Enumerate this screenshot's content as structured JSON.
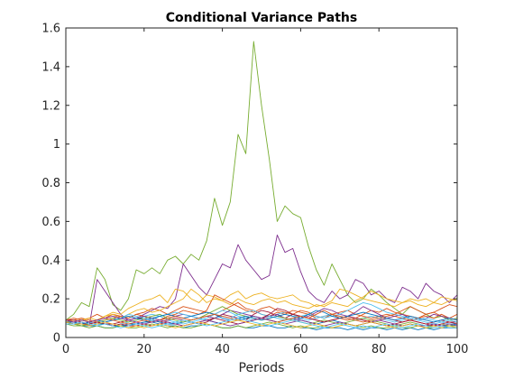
{
  "chart_data": {
    "type": "line",
    "title": "Conditional Variance Paths",
    "xlabel": "Periods",
    "ylabel": "",
    "xlim": [
      0,
      100
    ],
    "ylim": [
      0,
      1.6
    ],
    "xticks": [
      0,
      20,
      40,
      60,
      80,
      100
    ],
    "yticks": [
      0,
      0.2,
      0.4,
      0.6,
      0.8,
      1,
      1.2,
      1.4,
      1.6
    ],
    "xtick_labels": [
      "0",
      "20",
      "40",
      "60",
      "80",
      "100"
    ],
    "ytick_labels": [
      "0",
      "0.2",
      "0.4",
      "0.6",
      "0.8",
      "1",
      "1.2",
      "1.4",
      "1.6"
    ],
    "grid": false,
    "legend": "none",
    "x": [
      0,
      2,
      4,
      6,
      8,
      10,
      12,
      14,
      16,
      18,
      20,
      22,
      24,
      26,
      28,
      30,
      32,
      34,
      36,
      38,
      40,
      42,
      44,
      46,
      48,
      50,
      52,
      54,
      56,
      58,
      60,
      62,
      64,
      66,
      68,
      70,
      72,
      74,
      76,
      78,
      80,
      82,
      84,
      86,
      88,
      90,
      92,
      94,
      96,
      98,
      100
    ],
    "series": [
      {
        "color": "#77ac30",
        "values": [
          0.09,
          0.12,
          0.18,
          0.16,
          0.36,
          0.3,
          0.17,
          0.14,
          0.2,
          0.35,
          0.33,
          0.36,
          0.33,
          0.4,
          0.42,
          0.38,
          0.43,
          0.4,
          0.5,
          0.72,
          0.58,
          0.7,
          1.05,
          0.95,
          1.53,
          1.2,
          0.92,
          0.6,
          0.68,
          0.64,
          0.62,
          0.47,
          0.35,
          0.27,
          0.38,
          0.3,
          0.22,
          0.18,
          0.2,
          0.25,
          0.22,
          0.18,
          0.15,
          0.12,
          0.16,
          0.14,
          0.12,
          0.1,
          0.11,
          0.09,
          0.1
        ]
      },
      {
        "color": "#7e2f8e",
        "values": [
          0.08,
          0.07,
          0.08,
          0.06,
          0.3,
          0.24,
          0.18,
          0.12,
          0.09,
          0.1,
          0.12,
          0.14,
          0.16,
          0.15,
          0.2,
          0.38,
          0.32,
          0.26,
          0.22,
          0.3,
          0.38,
          0.36,
          0.48,
          0.4,
          0.35,
          0.3,
          0.32,
          0.53,
          0.44,
          0.46,
          0.34,
          0.24,
          0.2,
          0.18,
          0.24,
          0.2,
          0.22,
          0.3,
          0.28,
          0.22,
          0.24,
          0.2,
          0.18,
          0.26,
          0.24,
          0.2,
          0.28,
          0.24,
          0.22,
          0.18,
          0.22
        ]
      },
      {
        "color": "#edb120",
        "values": [
          0.08,
          0.09,
          0.1,
          0.08,
          0.09,
          0.11,
          0.13,
          0.12,
          0.15,
          0.17,
          0.19,
          0.2,
          0.22,
          0.18,
          0.25,
          0.24,
          0.2,
          0.18,
          0.22,
          0.21,
          0.19,
          0.22,
          0.24,
          0.2,
          0.22,
          0.23,
          0.21,
          0.2,
          0.21,
          0.22,
          0.19,
          0.18,
          0.16,
          0.17,
          0.19,
          0.25,
          0.24,
          0.22,
          0.2,
          0.19,
          0.18,
          0.17,
          0.16,
          0.18,
          0.19,
          0.17,
          0.16,
          0.18,
          0.17,
          0.19,
          0.2
        ]
      },
      {
        "color": "#0072bd",
        "values": [
          0.08,
          0.07,
          0.07,
          0.06,
          0.06,
          0.05,
          0.05,
          0.06,
          0.06,
          0.07,
          0.08,
          0.08,
          0.07,
          0.06,
          0.06,
          0.05,
          0.06,
          0.06,
          0.07,
          0.06,
          0.05,
          0.05,
          0.06,
          0.05,
          0.05,
          0.06,
          0.06,
          0.05,
          0.05,
          0.06,
          0.05,
          0.05,
          0.04,
          0.05,
          0.05,
          0.05,
          0.04,
          0.05,
          0.04,
          0.05,
          0.05,
          0.04,
          0.05,
          0.04,
          0.05,
          0.04,
          0.05,
          0.04,
          0.05,
          0.05,
          0.05
        ]
      },
      {
        "color": "#d95319",
        "values": [
          0.09,
          0.08,
          0.09,
          0.1,
          0.12,
          0.1,
          0.12,
          0.11,
          0.1,
          0.12,
          0.13,
          0.15,
          0.14,
          0.12,
          0.14,
          0.16,
          0.15,
          0.14,
          0.13,
          0.12,
          0.14,
          0.16,
          0.18,
          0.15,
          0.14,
          0.12,
          0.11,
          0.13,
          0.12,
          0.14,
          0.13,
          0.12,
          0.1,
          0.11,
          0.12,
          0.1,
          0.09,
          0.1,
          0.12,
          0.14,
          0.13,
          0.15,
          0.13,
          0.12,
          0.11,
          0.1,
          0.12,
          0.13,
          0.11,
          0.1,
          0.12
        ]
      },
      {
        "color": "#4dbeee",
        "values": [
          0.08,
          0.07,
          0.06,
          0.07,
          0.08,
          0.07,
          0.06,
          0.07,
          0.08,
          0.09,
          0.11,
          0.12,
          0.11,
          0.09,
          0.08,
          0.07,
          0.08,
          0.09,
          0.1,
          0.12,
          0.14,
          0.13,
          0.11,
          0.1,
          0.09,
          0.1,
          0.11,
          0.12,
          0.13,
          0.12,
          0.1,
          0.09,
          0.1,
          0.11,
          0.12,
          0.11,
          0.1,
          0.09,
          0.1,
          0.11,
          0.1,
          0.09,
          0.08,
          0.09,
          0.1,
          0.09,
          0.08,
          0.07,
          0.08,
          0.07,
          0.07
        ]
      },
      {
        "color": "#a2142f",
        "values": [
          0.08,
          0.08,
          0.07,
          0.07,
          0.08,
          0.07,
          0.07,
          0.08,
          0.09,
          0.1,
          0.1,
          0.09,
          0.08,
          0.09,
          0.1,
          0.09,
          0.08,
          0.07,
          0.08,
          0.1,
          0.12,
          0.11,
          0.1,
          0.09,
          0.12,
          0.14,
          0.13,
          0.11,
          0.1,
          0.12,
          0.11,
          0.1,
          0.09,
          0.08,
          0.09,
          0.1,
          0.11,
          0.1,
          0.09,
          0.08,
          0.09,
          0.1,
          0.09,
          0.08,
          0.09,
          0.08,
          0.07,
          0.08,
          0.09,
          0.08,
          0.08
        ]
      },
      {
        "color": "#0072bd",
        "values": [
          0.07,
          0.07,
          0.06,
          0.06,
          0.07,
          0.07,
          0.06,
          0.06,
          0.07,
          0.07,
          0.08,
          0.09,
          0.08,
          0.07,
          0.07,
          0.08,
          0.09,
          0.1,
          0.09,
          0.08,
          0.07,
          0.08,
          0.09,
          0.1,
          0.11,
          0.1,
          0.09,
          0.08,
          0.09,
          0.1,
          0.09,
          0.08,
          0.07,
          0.08,
          0.09,
          0.08,
          0.07,
          0.06,
          0.07,
          0.08,
          0.07,
          0.06,
          0.07,
          0.06,
          0.07,
          0.06,
          0.06,
          0.07,
          0.06,
          0.06,
          0.07
        ]
      },
      {
        "color": "#d95319",
        "values": [
          0.09,
          0.09,
          0.1,
          0.09,
          0.08,
          0.09,
          0.1,
          0.11,
          0.1,
          0.12,
          0.11,
          0.1,
          0.09,
          0.11,
          0.12,
          0.14,
          0.13,
          0.12,
          0.14,
          0.22,
          0.2,
          0.18,
          0.16,
          0.14,
          0.13,
          0.15,
          0.16,
          0.14,
          0.13,
          0.12,
          0.14,
          0.13,
          0.11,
          0.1,
          0.12,
          0.13,
          0.14,
          0.12,
          0.11,
          0.1,
          0.11,
          0.12,
          0.11,
          0.1,
          0.09,
          0.1,
          0.11,
          0.1,
          0.12,
          0.1,
          0.09
        ]
      },
      {
        "color": "#edb120",
        "values": [
          0.09,
          0.08,
          0.09,
          0.1,
          0.09,
          0.11,
          0.12,
          0.1,
          0.12,
          0.14,
          0.15,
          0.13,
          0.14,
          0.16,
          0.18,
          0.2,
          0.25,
          0.22,
          0.18,
          0.2,
          0.19,
          0.17,
          0.2,
          0.18,
          0.17,
          0.19,
          0.2,
          0.18,
          0.19,
          0.17,
          0.16,
          0.15,
          0.17,
          0.16,
          0.18,
          0.17,
          0.16,
          0.19,
          0.21,
          0.24,
          0.22,
          0.2,
          0.19,
          0.18,
          0.2,
          0.19,
          0.2,
          0.18,
          0.21,
          0.2,
          0.19
        ]
      },
      {
        "color": "#7e2f8e",
        "values": [
          0.08,
          0.07,
          0.07,
          0.08,
          0.07,
          0.08,
          0.09,
          0.1,
          0.09,
          0.1,
          0.11,
          0.1,
          0.09,
          0.1,
          0.11,
          0.12,
          0.11,
          0.1,
          0.11,
          0.1,
          0.12,
          0.14,
          0.13,
          0.12,
          0.11,
          0.1,
          0.11,
          0.12,
          0.1,
          0.09,
          0.1,
          0.11,
          0.13,
          0.15,
          0.14,
          0.12,
          0.11,
          0.13,
          0.16,
          0.14,
          0.12,
          0.1,
          0.11,
          0.12,
          0.1,
          0.09,
          0.1,
          0.12,
          0.11,
          0.1,
          0.09
        ]
      },
      {
        "color": "#77ac30",
        "values": [
          0.07,
          0.07,
          0.06,
          0.07,
          0.08,
          0.09,
          0.1,
          0.09,
          0.08,
          0.09,
          0.1,
          0.11,
          0.12,
          0.1,
          0.09,
          0.08,
          0.09,
          0.1,
          0.12,
          0.14,
          0.16,
          0.14,
          0.12,
          0.11,
          0.1,
          0.09,
          0.1,
          0.11,
          0.1,
          0.09,
          0.08,
          0.07,
          0.08,
          0.09,
          0.08,
          0.07,
          0.08,
          0.09,
          0.1,
          0.09,
          0.08,
          0.07,
          0.06,
          0.07,
          0.08,
          0.07,
          0.06,
          0.06,
          0.07,
          0.06,
          0.06
        ]
      },
      {
        "color": "#4dbeee",
        "values": [
          0.08,
          0.08,
          0.09,
          0.08,
          0.07,
          0.08,
          0.09,
          0.1,
          0.12,
          0.11,
          0.1,
          0.09,
          0.11,
          0.12,
          0.13,
          0.12,
          0.11,
          0.1,
          0.09,
          0.1,
          0.11,
          0.1,
          0.12,
          0.13,
          0.14,
          0.12,
          0.11,
          0.1,
          0.09,
          0.1,
          0.11,
          0.12,
          0.11,
          0.1,
          0.11,
          0.12,
          0.14,
          0.16,
          0.18,
          0.17,
          0.15,
          0.13,
          0.12,
          0.11,
          0.1,
          0.09,
          0.1,
          0.09,
          0.08,
          0.09,
          0.08
        ]
      },
      {
        "color": "#a2142f",
        "values": [
          0.09,
          0.09,
          0.08,
          0.07,
          0.08,
          0.07,
          0.06,
          0.07,
          0.06,
          0.06,
          0.07,
          0.06,
          0.07,
          0.08,
          0.07,
          0.06,
          0.07,
          0.08,
          0.09,
          0.1,
          0.09,
          0.08,
          0.07,
          0.08,
          0.09,
          0.1,
          0.12,
          0.15,
          0.14,
          0.12,
          0.11,
          0.1,
          0.09,
          0.08,
          0.09,
          0.1,
          0.11,
          0.1,
          0.09,
          0.08,
          0.07,
          0.06,
          0.07,
          0.08,
          0.09,
          0.08,
          0.07,
          0.06,
          0.07,
          0.08,
          0.07
        ]
      },
      {
        "color": "#0072bd",
        "values": [
          0.08,
          0.08,
          0.07,
          0.08,
          0.09,
          0.08,
          0.09,
          0.1,
          0.11,
          0.1,
          0.09,
          0.1,
          0.11,
          0.12,
          0.11,
          0.1,
          0.11,
          0.12,
          0.13,
          0.12,
          0.1,
          0.09,
          0.1,
          0.11,
          0.1,
          0.09,
          0.1,
          0.11,
          0.12,
          0.11,
          0.1,
          0.12,
          0.14,
          0.13,
          0.11,
          0.1,
          0.11,
          0.12,
          0.13,
          0.12,
          0.11,
          0.1,
          0.09,
          0.1,
          0.11,
          0.1,
          0.09,
          0.08,
          0.09,
          0.1,
          0.09
        ]
      },
      {
        "color": "#d95319",
        "values": [
          0.09,
          0.1,
          0.09,
          0.08,
          0.09,
          0.1,
          0.09,
          0.08,
          0.07,
          0.08,
          0.09,
          0.08,
          0.09,
          0.1,
          0.11,
          0.1,
          0.09,
          0.1,
          0.11,
          0.12,
          0.11,
          0.1,
          0.09,
          0.08,
          0.09,
          0.1,
          0.09,
          0.08,
          0.09,
          0.1,
          0.11,
          0.1,
          0.12,
          0.14,
          0.12,
          0.11,
          0.1,
          0.09,
          0.08,
          0.09,
          0.1,
          0.11,
          0.12,
          0.14,
          0.16,
          0.14,
          0.12,
          0.13,
          0.15,
          0.17,
          0.16
        ]
      },
      {
        "color": "#77ac30",
        "values": [
          0.07,
          0.06,
          0.06,
          0.05,
          0.06,
          0.05,
          0.05,
          0.06,
          0.05,
          0.05,
          0.06,
          0.07,
          0.06,
          0.05,
          0.06,
          0.05,
          0.05,
          0.06,
          0.07,
          0.06,
          0.05,
          0.05,
          0.06,
          0.05,
          0.06,
          0.07,
          0.08,
          0.07,
          0.06,
          0.05,
          0.06,
          0.05,
          0.05,
          0.06,
          0.05,
          0.06,
          0.07,
          0.06,
          0.05,
          0.06,
          0.05,
          0.05,
          0.06,
          0.05,
          0.05,
          0.06,
          0.05,
          0.05,
          0.06,
          0.05,
          0.05
        ]
      },
      {
        "color": "#7e2f8e",
        "values": [
          0.09,
          0.08,
          0.09,
          0.08,
          0.09,
          0.1,
          0.11,
          0.1,
          0.09,
          0.08,
          0.07,
          0.08,
          0.09,
          0.08,
          0.07,
          0.06,
          0.07,
          0.08,
          0.09,
          0.08,
          0.07,
          0.06,
          0.07,
          0.08,
          0.09,
          0.1,
          0.09,
          0.08,
          0.07,
          0.08,
          0.09,
          0.08,
          0.07,
          0.06,
          0.07,
          0.08,
          0.07,
          0.06,
          0.07,
          0.08,
          0.09,
          0.08,
          0.07,
          0.06,
          0.07,
          0.06,
          0.06,
          0.07,
          0.06,
          0.07,
          0.06
        ]
      },
      {
        "color": "#edb120",
        "values": [
          0.08,
          0.07,
          0.07,
          0.06,
          0.07,
          0.08,
          0.07,
          0.06,
          0.05,
          0.06,
          0.05,
          0.06,
          0.07,
          0.06,
          0.05,
          0.06,
          0.07,
          0.08,
          0.07,
          0.06,
          0.07,
          0.08,
          0.09,
          0.08,
          0.07,
          0.06,
          0.07,
          0.08,
          0.07,
          0.06,
          0.05,
          0.06,
          0.07,
          0.06,
          0.05,
          0.06,
          0.07,
          0.06,
          0.07,
          0.08,
          0.07,
          0.06,
          0.05,
          0.06,
          0.07,
          0.06,
          0.05,
          0.06,
          0.05,
          0.06,
          0.05
        ]
      },
      {
        "color": "#4dbeee",
        "values": [
          0.07,
          0.07,
          0.08,
          0.07,
          0.06,
          0.07,
          0.06,
          0.05,
          0.06,
          0.07,
          0.06,
          0.05,
          0.06,
          0.07,
          0.08,
          0.09,
          0.08,
          0.07,
          0.06,
          0.07,
          0.08,
          0.09,
          0.1,
          0.09,
          0.08,
          0.07,
          0.06,
          0.07,
          0.08,
          0.09,
          0.08,
          0.07,
          0.06,
          0.05,
          0.06,
          0.07,
          0.06,
          0.05,
          0.06,
          0.05,
          0.06,
          0.07,
          0.06,
          0.05,
          0.06,
          0.07,
          0.06,
          0.05,
          0.06,
          0.05,
          0.05
        ]
      }
    ]
  }
}
